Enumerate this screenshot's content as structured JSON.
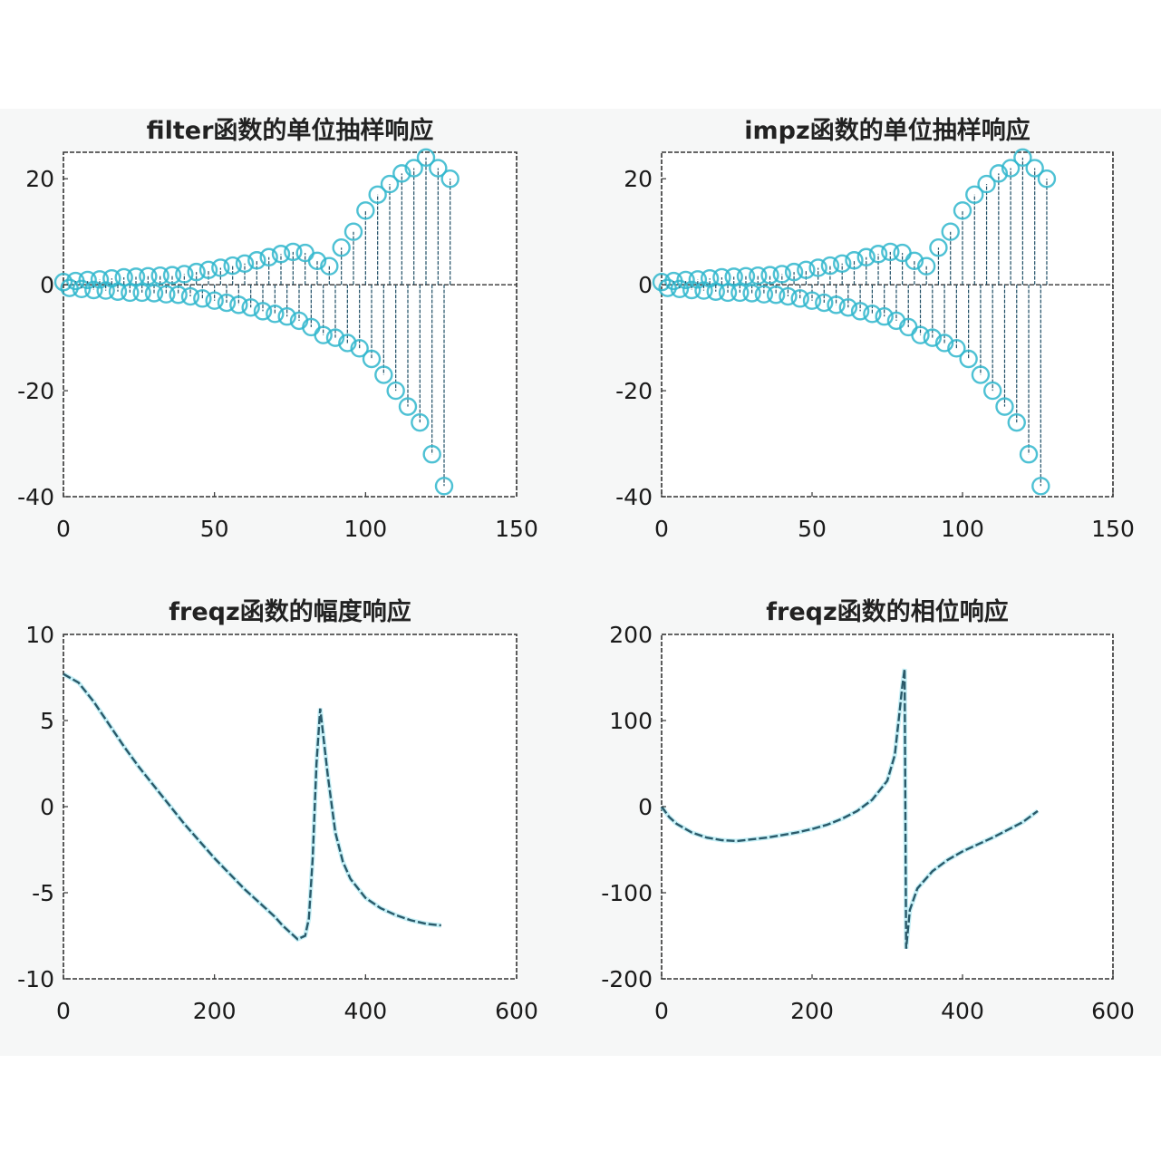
{
  "figure": {
    "background": "#f6f7f7",
    "stem_color": "#1f4f66",
    "marker_color": "#2fb6cc",
    "line_color": "#2a5a6a"
  },
  "chart_data": [
    {
      "type": "scatter",
      "style": "stem",
      "title": "filter函数的单位抽样响应",
      "xlabel": "",
      "ylabel": "",
      "xlim": [
        0,
        150
      ],
      "ylim": [
        -40,
        25
      ],
      "xticks": [
        "0",
        "50",
        "100",
        "150"
      ],
      "yticks": [
        "20",
        "0",
        "-20",
        "-40"
      ],
      "grid": false,
      "x": [
        0,
        2,
        4,
        6,
        8,
        10,
        12,
        14,
        16,
        18,
        20,
        22,
        24,
        26,
        28,
        30,
        32,
        34,
        36,
        38,
        40,
        42,
        44,
        46,
        48,
        50,
        52,
        54,
        56,
        58,
        60,
        62,
        64,
        66,
        68,
        70,
        72,
        74,
        76,
        78,
        80,
        82,
        84,
        86,
        88,
        90,
        92,
        94,
        96,
        98,
        100,
        102,
        104,
        106,
        108,
        110,
        112,
        114,
        116,
        118,
        120,
        122,
        124,
        126,
        128
      ],
      "values": [
        0.5,
        -0.6,
        0.7,
        -0.8,
        0.9,
        -1.0,
        1.0,
        -1.1,
        1.2,
        -1.3,
        1.4,
        -1.5,
        1.5,
        -1.5,
        1.6,
        -1.6,
        1.7,
        -1.8,
        1.8,
        -1.9,
        2.0,
        -2.2,
        2.4,
        -2.6,
        2.8,
        -3.0,
        3.2,
        -3.4,
        3.6,
        -3.8,
        4.0,
        -4.3,
        4.6,
        -5.0,
        5.2,
        -5.5,
        5.8,
        -6.0,
        6.2,
        -6.8,
        6.0,
        -8.0,
        4.5,
        -9.5,
        3.5,
        -10.0,
        7.0,
        -11.0,
        10.0,
        -12.0,
        14.0,
        -14.0,
        17.0,
        -17.0,
        19.0,
        -20.0,
        21.0,
        -23.0,
        22.0,
        -26.0,
        24.0,
        -32.0,
        22.0,
        -38.0,
        20.0
      ]
    },
    {
      "type": "scatter",
      "style": "stem",
      "title": "impz函数的单位抽样响应",
      "xlabel": "",
      "ylabel": "",
      "xlim": [
        0,
        150
      ],
      "ylim": [
        -40,
        25
      ],
      "xticks": [
        "0",
        "50",
        "100",
        "150"
      ],
      "yticks": [
        "20",
        "0",
        "-20",
        "-40"
      ],
      "grid": false,
      "x": [
        0,
        2,
        4,
        6,
        8,
        10,
        12,
        14,
        16,
        18,
        20,
        22,
        24,
        26,
        28,
        30,
        32,
        34,
        36,
        38,
        40,
        42,
        44,
        46,
        48,
        50,
        52,
        54,
        56,
        58,
        60,
        62,
        64,
        66,
        68,
        70,
        72,
        74,
        76,
        78,
        80,
        82,
        84,
        86,
        88,
        90,
        92,
        94,
        96,
        98,
        100,
        102,
        104,
        106,
        108,
        110,
        112,
        114,
        116,
        118,
        120,
        122,
        124,
        126,
        128
      ],
      "values": [
        0.5,
        -0.6,
        0.7,
        -0.8,
        0.9,
        -1.0,
        1.0,
        -1.1,
        1.2,
        -1.3,
        1.4,
        -1.5,
        1.5,
        -1.5,
        1.6,
        -1.6,
        1.7,
        -1.8,
        1.8,
        -1.9,
        2.0,
        -2.2,
        2.4,
        -2.6,
        2.8,
        -3.0,
        3.2,
        -3.4,
        3.6,
        -3.8,
        4.0,
        -4.3,
        4.6,
        -5.0,
        5.2,
        -5.5,
        5.8,
        -6.0,
        6.2,
        -6.8,
        6.0,
        -8.0,
        4.5,
        -9.5,
        3.5,
        -10.0,
        7.0,
        -11.0,
        10.0,
        -12.0,
        14.0,
        -14.0,
        17.0,
        -17.0,
        19.0,
        -20.0,
        21.0,
        -23.0,
        22.0,
        -26.0,
        24.0,
        -32.0,
        22.0,
        -38.0,
        20.0
      ]
    },
    {
      "type": "line",
      "title": "freqz函数的幅度响应",
      "xlabel": "",
      "ylabel": "",
      "xlim": [
        0,
        600
      ],
      "ylim": [
        -10,
        10
      ],
      "xticks": [
        "0",
        "200",
        "400",
        "600"
      ],
      "yticks": [
        "10",
        "5",
        "0",
        "-5",
        "-10"
      ],
      "grid": false,
      "x": [
        0,
        20,
        40,
        60,
        80,
        100,
        120,
        140,
        160,
        180,
        200,
        220,
        240,
        260,
        280,
        290,
        300,
        310,
        320,
        325,
        330,
        335,
        340,
        350,
        360,
        370,
        380,
        400,
        420,
        440,
        460,
        480,
        500
      ],
      "values": [
        7.7,
        7.2,
        6.1,
        4.8,
        3.5,
        2.3,
        1.2,
        0.1,
        -1.0,
        -2.0,
        -3.0,
        -3.9,
        -4.8,
        -5.6,
        -6.4,
        -6.9,
        -7.3,
        -7.7,
        -7.5,
        -6.5,
        -3.0,
        2.5,
        5.7,
        1.8,
        -1.5,
        -3.2,
        -4.2,
        -5.3,
        -5.9,
        -6.3,
        -6.6,
        -6.8,
        -6.9
      ]
    },
    {
      "type": "line",
      "title": "freqz函数的相位响应",
      "xlabel": "",
      "ylabel": "",
      "xlim": [
        0,
        600
      ],
      "ylim": [
        -200,
        200
      ],
      "xticks": [
        "0",
        "200",
        "400",
        "600"
      ],
      "yticks": [
        "200",
        "100",
        "0",
        "-100",
        "-200"
      ],
      "grid": false,
      "x": [
        0,
        10,
        20,
        40,
        60,
        80,
        100,
        120,
        140,
        160,
        180,
        200,
        220,
        240,
        260,
        280,
        300,
        310,
        315,
        320,
        323,
        325,
        330,
        340,
        360,
        380,
        400,
        440,
        480,
        500
      ],
      "values": [
        0,
        -12,
        -20,
        -30,
        -36,
        -39,
        -40,
        -38,
        -36,
        -33,
        -30,
        -26,
        -21,
        -14,
        -5,
        8,
        30,
        60,
        100,
        140,
        160,
        -165,
        -120,
        -95,
        -75,
        -62,
        -52,
        -36,
        -18,
        -5
      ]
    }
  ]
}
